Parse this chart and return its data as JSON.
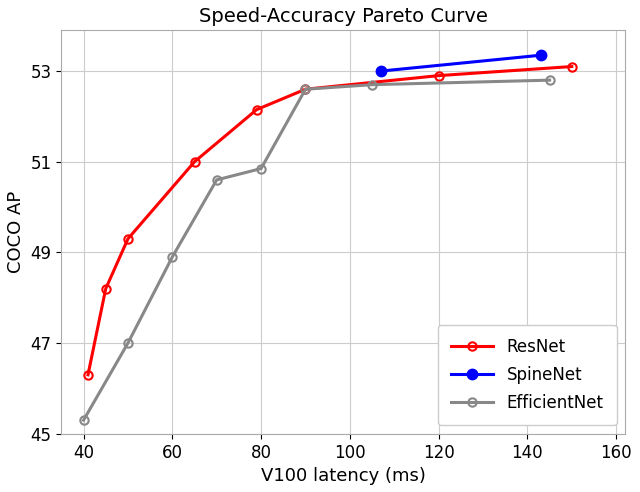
{
  "title": "Speed-Accuracy Pareto Curve",
  "xlabel": "V100 latency (ms)",
  "ylabel": "COCO AP",
  "xlim": [
    35,
    162
  ],
  "ylim": [
    45.0,
    53.9
  ],
  "yticks": [
    45,
    47,
    49,
    51,
    53
  ],
  "xticks": [
    40,
    60,
    80,
    100,
    120,
    140,
    160
  ],
  "resnet": {
    "x": [
      41,
      45,
      50,
      65,
      79,
      90,
      120,
      150
    ],
    "y": [
      46.3,
      48.2,
      49.3,
      51.0,
      52.15,
      52.6,
      52.9,
      53.1
    ],
    "color": "#ff0000",
    "label": "ResNet",
    "marker": "o",
    "markersize": 6,
    "linewidth": 2.2,
    "markerfacecolor": "none",
    "markeredgewidth": 1.5
  },
  "spinenet": {
    "x": [
      107,
      143
    ],
    "y": [
      53.0,
      53.35
    ],
    "color": "#0000ff",
    "label": "SpineNet",
    "marker": "o",
    "markersize": 7,
    "linewidth": 2.2,
    "markerfacecolor": "#0000ff",
    "markeredgewidth": 1.5
  },
  "efficientnet": {
    "x": [
      40,
      50,
      60,
      70,
      80,
      90,
      105,
      145
    ],
    "y": [
      45.3,
      47.0,
      48.9,
      50.6,
      50.85,
      52.6,
      52.7,
      52.8
    ],
    "color": "#888888",
    "label": "EfficientNet",
    "marker": "o",
    "markersize": 6,
    "linewidth": 2.2,
    "markerfacecolor": "none",
    "markeredgewidth": 1.5
  },
  "background_color": "#ffffff",
  "grid_color": "#cccccc",
  "title_fontsize": 14,
  "axis_label_fontsize": 13,
  "tick_fontsize": 12,
  "legend_fontsize": 12,
  "legend_loc": "lower right"
}
